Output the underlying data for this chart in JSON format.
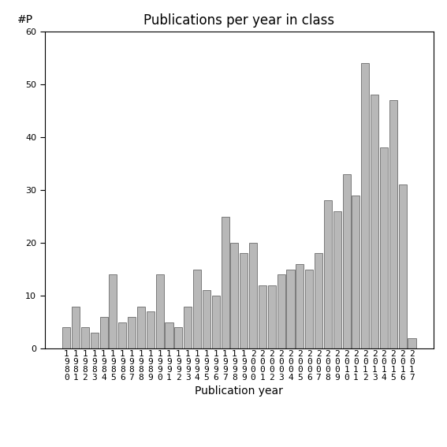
{
  "title": "Publications per year in class",
  "xlabel": "Publication year",
  "ylabel": "#P",
  "years": [
    1980,
    1981,
    1982,
    1983,
    1984,
    1985,
    1986,
    1987,
    1988,
    1989,
    1990,
    1991,
    1992,
    1993,
    1994,
    1995,
    1996,
    1997,
    1998,
    1999,
    2000,
    2001,
    2002,
    2003,
    2004,
    2005,
    2006,
    2007,
    2008,
    2009,
    2010,
    2011,
    2012,
    2013,
    2014,
    2015,
    2016,
    2017
  ],
  "values": [
    4,
    8,
    4,
    3,
    6,
    14,
    5,
    6,
    8,
    7,
    14,
    5,
    4,
    8,
    15,
    11,
    10,
    25,
    20,
    18,
    20,
    12,
    12,
    14,
    15,
    16,
    15,
    18,
    28,
    26,
    33,
    29,
    54,
    48,
    38,
    47,
    31,
    2
  ],
  "bar_color": "#b8b8b8",
  "bar_edge_color": "#555555",
  "ylim": [
    0,
    60
  ],
  "yticks": [
    0,
    10,
    20,
    30,
    40,
    50,
    60
  ],
  "background_color": "#ffffff",
  "title_fontsize": 12,
  "axis_label_fontsize": 10,
  "tick_label_fontsize": 8
}
